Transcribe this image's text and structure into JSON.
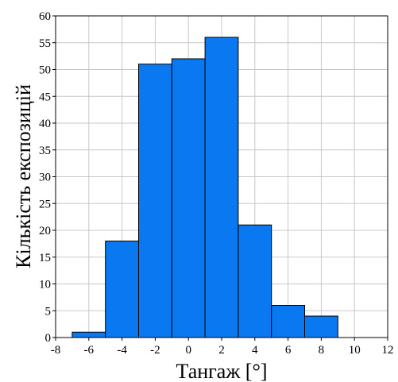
{
  "chart_data": {
    "type": "bar",
    "xlabel": "Тангаж [°]",
    "ylabel": "Кількість експозицій",
    "xlim": [
      -8,
      12
    ],
    "ylim": [
      0,
      60
    ],
    "xticks": [
      -8,
      -6,
      -4,
      -2,
      0,
      2,
      4,
      6,
      8,
      10,
      12
    ],
    "yticks": [
      0,
      5,
      10,
      15,
      20,
      25,
      30,
      35,
      40,
      45,
      50,
      55,
      60
    ],
    "bin_edges": [
      -7,
      -5,
      -3,
      -1,
      1,
      3,
      5,
      7,
      9,
      11
    ],
    "values": [
      1,
      18,
      51,
      52,
      56,
      21,
      6,
      4,
      0
    ],
    "bar_color": "#0a78f0",
    "grid": true,
    "legend": "none"
  }
}
